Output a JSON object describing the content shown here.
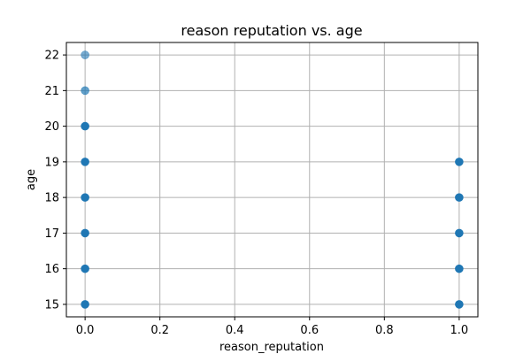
{
  "chart_data": {
    "type": "scatter",
    "title": "reason reputation vs. age",
    "xlabel": "reason_reputation",
    "ylabel": "age",
    "xlim": [
      -0.05,
      1.05
    ],
    "ylim": [
      14.65,
      22.35
    ],
    "xticks": [
      "0.0",
      "0.2",
      "0.4",
      "0.6",
      "0.8",
      "1.0"
    ],
    "yticks": [
      "15",
      "16",
      "17",
      "18",
      "19",
      "20",
      "21",
      "22"
    ],
    "grid": true,
    "point_color": "#1f77b4",
    "points": [
      {
        "x": 0,
        "y": 22,
        "opacity": 0.6
      },
      {
        "x": 0,
        "y": 21,
        "opacity": 0.7
      },
      {
        "x": 0,
        "y": 20,
        "opacity": 1
      },
      {
        "x": 0,
        "y": 19,
        "opacity": 1
      },
      {
        "x": 0,
        "y": 18,
        "opacity": 1
      },
      {
        "x": 0,
        "y": 17,
        "opacity": 1
      },
      {
        "x": 0,
        "y": 16,
        "opacity": 1
      },
      {
        "x": 0,
        "y": 15,
        "opacity": 1
      },
      {
        "x": 1,
        "y": 19,
        "opacity": 1
      },
      {
        "x": 1,
        "y": 18,
        "opacity": 1
      },
      {
        "x": 1,
        "y": 17,
        "opacity": 1
      },
      {
        "x": 1,
        "y": 16,
        "opacity": 1
      },
      {
        "x": 1,
        "y": 15,
        "opacity": 1
      }
    ]
  }
}
